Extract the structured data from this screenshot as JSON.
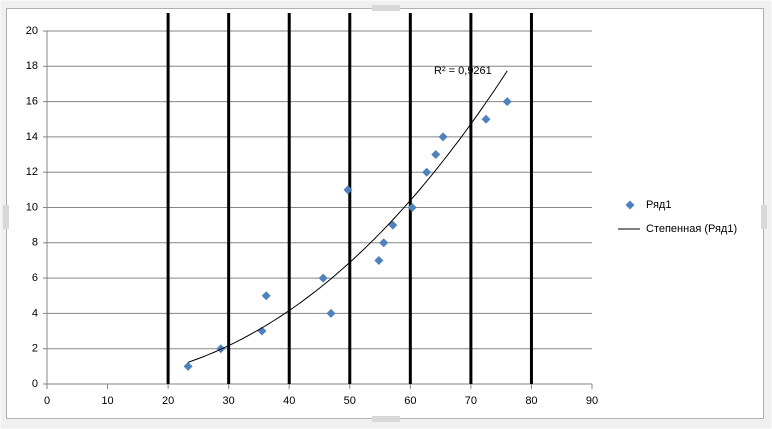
{
  "chart_data": {
    "type": "scatter",
    "series": [
      {
        "name": "Ряд1",
        "color": "#4f81bd",
        "x": [
          23.3,
          28.7,
          35.5,
          36.2,
          45.6,
          46.9,
          49.7,
          54.8,
          55.6,
          57.1,
          60.3,
          62.7,
          64.2,
          65.4,
          72.5,
          76.0
        ],
        "values": [
          1,
          2,
          3,
          5,
          6,
          4,
          11,
          7,
          8,
          9,
          10,
          12,
          13,
          14,
          15,
          16
        ]
      }
    ],
    "trendline": {
      "kind": "power",
      "name": "Степенная (Ряд1)",
      "label": "R² = 0,9261",
      "color": "#000000"
    },
    "vertical_lines": [
      20,
      30,
      40,
      50,
      60,
      70,
      80
    ],
    "xlim": [
      0,
      90
    ],
    "xticks": [
      0,
      10,
      20,
      30,
      40,
      50,
      60,
      70,
      80,
      90
    ],
    "ylim": [
      0,
      20
    ],
    "yticks": [
      0,
      2,
      4,
      6,
      8,
      10,
      12,
      14,
      16,
      18,
      20
    ],
    "grid": true,
    "legend": "right"
  }
}
